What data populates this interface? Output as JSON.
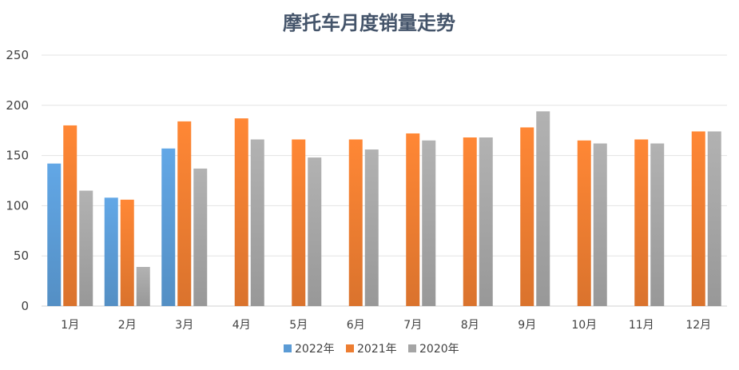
{
  "chart_data": {
    "type": "bar",
    "title": "摩托车月度销量走势",
    "xlabel": "",
    "ylabel": "",
    "ylim": [
      0,
      250
    ],
    "yticks": [
      0,
      50,
      100,
      150,
      200,
      250
    ],
    "grid": true,
    "legend_position": "bottom",
    "categories": [
      "1月",
      "2月",
      "3月",
      "4月",
      "5月",
      "6月",
      "7月",
      "8月",
      "9月",
      "10月",
      "11月",
      "12月"
    ],
    "series": [
      {
        "name": "2022年",
        "color": "#5b9bd5",
        "values": [
          142,
          108,
          157,
          null,
          null,
          null,
          null,
          null,
          null,
          null,
          null,
          null
        ]
      },
      {
        "name": "2021年",
        "color": "#ed7d31",
        "values": [
          180,
          106,
          184,
          187,
          166,
          166,
          172,
          168,
          178,
          165,
          166,
          174
        ]
      },
      {
        "name": "2020年",
        "color": "#a5a5a5",
        "values": [
          115,
          39,
          137,
          166,
          148,
          156,
          165,
          168,
          194,
          162,
          162,
          174
        ]
      }
    ]
  }
}
